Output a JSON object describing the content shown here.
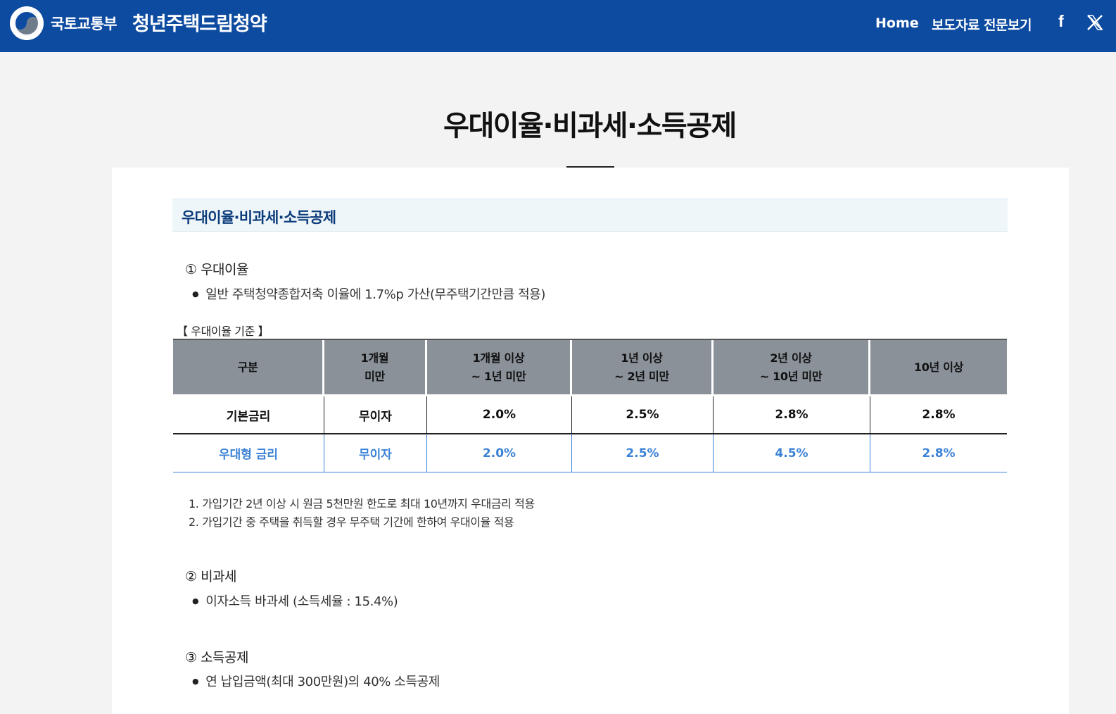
{
  "header": {
    "ministry": "국토교통부",
    "brand": "청년주택드림청약",
    "nav_home": "Home",
    "nav_press": "보도자료 전문보기",
    "facebook_glyph": "f",
    "colors": {
      "bar": "#0d4ba0"
    }
  },
  "page": {
    "title": "우대이율·비과세·소득공제"
  },
  "section": {
    "heading": "우대이율·비과세·소득공제",
    "rate": {
      "heading": "① 우대이율",
      "bullet": "일반 주택청약종합저축 이율에 1.7%p 가산(무주택기간만큼 적용)",
      "caption": "【 우대이율 기준 】",
      "table": {
        "headers": [
          {
            "line1": "구분",
            "line2": ""
          },
          {
            "line1": "1개월",
            "line2": "미만"
          },
          {
            "line1": "1개월 이상",
            "line2": "~ 1년 미만"
          },
          {
            "line1": "1년 이상",
            "line2": "~ 2년 미만"
          },
          {
            "line1": "2년 이상",
            "line2": "~ 10년 미만"
          },
          {
            "line1": "10년 이상",
            "line2": ""
          }
        ],
        "rows": [
          {
            "label": "기본금리",
            "cells": [
              "무이자",
              "2.0%",
              "2.5%",
              "2.8%",
              "2.8%"
            ]
          },
          {
            "label": "우대형 금리",
            "cells": [
              "무이자",
              "2.0%",
              "2.5%",
              "4.5%",
              "2.8%"
            ]
          }
        ],
        "colors": {
          "header_bg": "#8a9199",
          "preferred_text": "#3b82d6"
        }
      },
      "notes": [
        "1. 가입기간 2년 이상 시 원금 5천만원 한도로 최대 10년까지 우대금리 적용",
        "2. 가입기간 중 주택을 취득할 경우 무주택 기간에 한하여 우대이율 적용"
      ]
    },
    "tax": {
      "heading": "② 비과세",
      "bullet": "이자소득 바과세 (소득세율 : 15.4%)"
    },
    "deduction": {
      "heading": "③ 소득공제",
      "bullet": "연 납입금액(최대 300만원)의 40% 소득공제"
    }
  }
}
